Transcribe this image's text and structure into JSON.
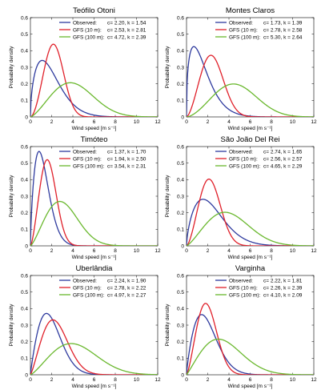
{
  "chart_data": [
    {
      "type": "line",
      "title": "Teófilo Otoni",
      "xlabel": "Wind speed [m s⁻¹]",
      "ylabel": "Probability density",
      "xlim": [
        0,
        12
      ],
      "ylim": [
        0,
        0.6
      ],
      "xticks": [
        "0",
        "2",
        "4",
        "6",
        "8",
        "10",
        "12"
      ],
      "yticks": [
        "0",
        "0.1",
        "0.2",
        "0.3",
        "0.4",
        "0.5",
        "0.6"
      ],
      "grid": false,
      "legend_position": "top-right",
      "series": [
        {
          "name": "Observed:",
          "params": "c= 2.20, k = 1.54",
          "c": 2.2,
          "k": 1.54,
          "color": "#2e3a9e"
        },
        {
          "name": "GFS (10 m):",
          "params": "c= 2.53, k = 2.81",
          "c": 2.53,
          "k": 2.81,
          "color": "#e0202a"
        },
        {
          "name": "GFS (100 m):",
          "params": "c= 4.72, k = 2.39",
          "c": 4.72,
          "k": 2.39,
          "color": "#6ab82e"
        }
      ]
    },
    {
      "type": "line",
      "title": "Montes Claros",
      "xlabel": "Wind speed [m s⁻¹]",
      "ylabel": "Probability density",
      "xlim": [
        0,
        12
      ],
      "ylim": [
        0,
        0.6
      ],
      "xticks": [
        "0",
        "2",
        "4",
        "6",
        "8",
        "10",
        "12"
      ],
      "yticks": [
        "0",
        "0.1",
        "0.2",
        "0.3",
        "0.4",
        "0.5",
        "0.6"
      ],
      "grid": false,
      "legend_position": "top-right",
      "series": [
        {
          "name": "Observed:",
          "params": "c= 1.73, k = 1.39",
          "c": 1.73,
          "k": 1.39,
          "color": "#2e3a9e"
        },
        {
          "name": "GFS (10 m):",
          "params": "c= 2.78, k = 2.58",
          "c": 2.78,
          "k": 2.58,
          "color": "#e0202a"
        },
        {
          "name": "GFS (100 m):",
          "params": "c= 5.30, k = 2.64",
          "c": 5.3,
          "k": 2.64,
          "color": "#6ab82e"
        }
      ]
    },
    {
      "type": "line",
      "title": "Timóteo",
      "xlabel": "Wind speed [m s⁻¹]",
      "ylabel": "Probability density",
      "xlim": [
        0,
        12
      ],
      "ylim": [
        0,
        0.6
      ],
      "xticks": [
        "0",
        "2",
        "4",
        "6",
        "8",
        "10",
        "12"
      ],
      "yticks": [
        "0",
        "0.1",
        "0.2",
        "0.3",
        "0.4",
        "0.5",
        "0.6"
      ],
      "grid": false,
      "legend_position": "top-right",
      "series": [
        {
          "name": "Observed:",
          "params": "c= 1.37, k = 1.70",
          "c": 1.37,
          "k": 1.7,
          "color": "#2e3a9e"
        },
        {
          "name": "GFS (10 m):",
          "params": "c= 1.94, k = 2.50",
          "c": 1.94,
          "k": 2.5,
          "color": "#e0202a"
        },
        {
          "name": "GFS (100 m):",
          "params": "c= 3.54, k = 2.31",
          "c": 3.54,
          "k": 2.31,
          "color": "#6ab82e"
        }
      ]
    },
    {
      "type": "line",
      "title": "São João Del Rei",
      "xlabel": "Wind speed [m s⁻¹]",
      "ylabel": "Probability density",
      "xlim": [
        0,
        12
      ],
      "ylim": [
        0,
        0.6
      ],
      "xticks": [
        "0",
        "2",
        "4",
        "6",
        "8",
        "10",
        "12"
      ],
      "yticks": [
        "0",
        "0.1",
        "0.2",
        "0.3",
        "0.4",
        "0.5",
        "0.6"
      ],
      "grid": false,
      "legend_position": "top-right",
      "series": [
        {
          "name": "Observed:",
          "params": "c= 2.74, k = 1.65",
          "c": 2.74,
          "k": 1.65,
          "color": "#2e3a9e"
        },
        {
          "name": "GFS (10 m):",
          "params": "c= 2.56, k = 2.57",
          "c": 2.56,
          "k": 2.57,
          "color": "#e0202a"
        },
        {
          "name": "GFS (100 m):",
          "params": "c= 4.65, k = 2.29",
          "c": 4.65,
          "k": 2.29,
          "color": "#6ab82e"
        }
      ]
    },
    {
      "type": "line",
      "title": "Uberlândia",
      "xlabel": "Wind speed [m s⁻¹]",
      "ylabel": "Probability density",
      "xlim": [
        0,
        12
      ],
      "ylim": [
        0,
        0.6
      ],
      "xticks": [
        "0",
        "2",
        "4",
        "6",
        "8",
        "10",
        "12"
      ],
      "yticks": [
        "0",
        "0.1",
        "0.2",
        "0.3",
        "0.4",
        "0.5",
        "0.6"
      ],
      "grid": false,
      "legend_position": "top-right",
      "series": [
        {
          "name": "Observed:",
          "params": "c= 2.24, k = 1.90",
          "c": 2.24,
          "k": 1.9,
          "color": "#2e3a9e"
        },
        {
          "name": "GFS (10 m):",
          "params": "c= 2.78, k = 2.22",
          "c": 2.78,
          "k": 2.22,
          "color": "#e0202a"
        },
        {
          "name": "GFS (100 m):",
          "params": "c= 4.97, k = 2.27",
          "c": 4.97,
          "k": 2.27,
          "color": "#6ab82e"
        }
      ]
    },
    {
      "type": "line",
      "title": "Varginha",
      "xlabel": "Wind speed [m s⁻¹]",
      "ylabel": "Probability density",
      "xlim": [
        0,
        12
      ],
      "ylim": [
        0,
        0.6
      ],
      "xticks": [
        "0",
        "2",
        "4",
        "6",
        "8",
        "10",
        "12"
      ],
      "yticks": [
        "0",
        "0.1",
        "0.2",
        "0.3",
        "0.4",
        "0.5",
        "0.6"
      ],
      "grid": false,
      "legend_position": "top-right",
      "series": [
        {
          "name": "Observed:",
          "params": "c= 2.22, k = 1.81",
          "c": 2.22,
          "k": 1.81,
          "color": "#2e3a9e"
        },
        {
          "name": "GFS (10 m):",
          "params": "c= 2.26, k = 2.39",
          "c": 2.26,
          "k": 2.39,
          "color": "#e0202a"
        },
        {
          "name": "GFS (100 m):",
          "params": "c= 4.10, k = 2.09",
          "c": 4.1,
          "k": 2.09,
          "color": "#6ab82e"
        }
      ]
    }
  ]
}
